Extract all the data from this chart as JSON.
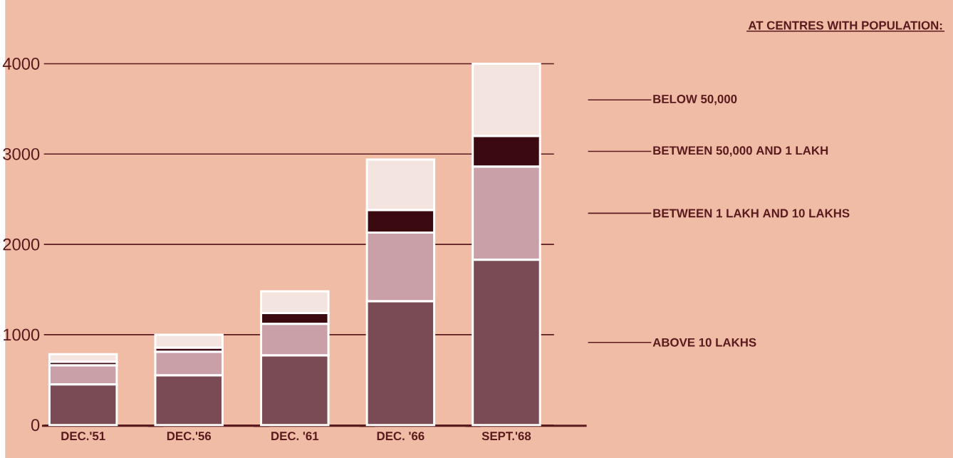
{
  "chart_data": {
    "type": "bar",
    "stacked": true,
    "legend_title": "AT CENTRES WITH POPULATION:",
    "legend": "right",
    "grid": "y",
    "categories": [
      "DEC.'51",
      "DEC.'56",
      "DEC. '61",
      "DEC. '66",
      "SEPT.'68"
    ],
    "series": [
      {
        "name": "ABOVE 10 LAKHS",
        "color": "#7a4a55",
        "values": [
          450,
          550,
          770,
          1370,
          1830
        ]
      },
      {
        "name": "BETWEEN 1 LAKH AND 10 LAKHS",
        "color": "#c9a0a8",
        "values": [
          210,
          260,
          350,
          760,
          1030
        ]
      },
      {
        "name": "BETWEEN 50,000 AND 1 LAKH",
        "color": "#3a0a10",
        "values": [
          40,
          45,
          120,
          250,
          340
        ]
      },
      {
        "name": "BELOW 50,000",
        "color": "#f3e4e0",
        "values": [
          85,
          145,
          240,
          560,
          800
        ]
      }
    ],
    "ylim": [
      0,
      4000
    ],
    "yticks": [
      0,
      1000,
      2000,
      3000,
      4000
    ]
  }
}
